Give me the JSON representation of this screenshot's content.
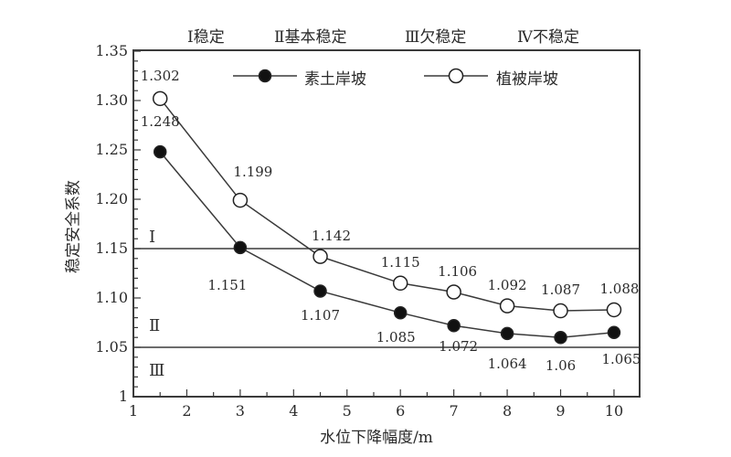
{
  "chart_data": {
    "type": "line",
    "title": "",
    "xlabel": "水位下降幅度/m",
    "ylabel": "稳定安全系数",
    "x": [
      1.5,
      3,
      4.5,
      6,
      7,
      8,
      9,
      10
    ],
    "xlim": [
      1,
      10.48
    ],
    "ylim": [
      1.0,
      1.35
    ],
    "x_ticks": [
      1,
      2,
      3,
      4,
      5,
      6,
      7,
      8,
      9,
      10
    ],
    "y_ticks": [
      "1",
      "1.05",
      "1.10",
      "1.15",
      "1.20",
      "1.25",
      "1.30",
      "1.35"
    ],
    "grid": false,
    "legend_position": "top",
    "series": [
      {
        "name": "素土岸坡",
        "marker": "filled-circle",
        "values": [
          1.248,
          1.151,
          1.107,
          1.085,
          1.072,
          1.064,
          1.06,
          1.065
        ],
        "labels": [
          "1.248",
          "1.151",
          "1.107",
          "1.085",
          "1.072",
          "1.064",
          "1.06",
          "1.065"
        ]
      },
      {
        "name": "植被岸坡",
        "marker": "open-circle",
        "values": [
          1.302,
          1.199,
          1.142,
          1.115,
          1.106,
          1.092,
          1.087,
          1.088
        ],
        "labels": [
          "1.302",
          "1.199",
          "1.142",
          "1.115",
          "1.106",
          "1.092",
          "1.087",
          "1.088"
        ]
      }
    ],
    "reference_lines": [
      {
        "y": 1.15,
        "label": "Ⅰ"
      },
      {
        "y": 1.05,
        "label": "Ⅲ"
      }
    ],
    "zones": [
      {
        "label": "Ⅰ",
        "y_label_pos": 1.16
      },
      {
        "label": "Ⅱ",
        "y_label_pos": 1.07
      },
      {
        "label": "Ⅲ",
        "y_label_pos": 1.025
      }
    ],
    "categories_header": [
      "Ⅰ稳定",
      "Ⅱ基本稳定",
      "Ⅲ欠稳定",
      "Ⅳ不稳定"
    ]
  }
}
